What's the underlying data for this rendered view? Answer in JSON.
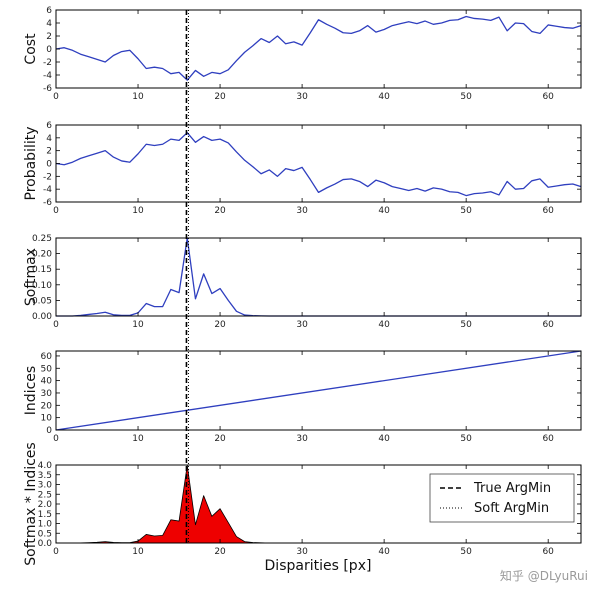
{
  "chart_data": {
    "type": "line",
    "xlabel": "Disparities [px]",
    "xlim": [
      0,
      64
    ],
    "xticks": [
      0,
      10,
      20,
      30,
      40,
      50,
      60
    ],
    "marker_x": 16,
    "panels": [
      {
        "name": "cost",
        "ylabel": "Cost",
        "ylim": [
          -6,
          6
        ],
        "yticks": [
          -6,
          -4,
          -2,
          0,
          2,
          4,
          6
        ],
        "series": [
          {
            "name": "Cost",
            "color": "#2f3fbf",
            "x": [
              0,
              1,
              2,
              3,
              4,
              5,
              6,
              7,
              8,
              9,
              10,
              11,
              12,
              13,
              14,
              15,
              16,
              17,
              18,
              19,
              20,
              21,
              22,
              23,
              24,
              25,
              26,
              27,
              28,
              29,
              30,
              31,
              32,
              33,
              34,
              35,
              36,
              37,
              38,
              39,
              40,
              41,
              42,
              43,
              44,
              45,
              46,
              47,
              48,
              49,
              50,
              51,
              52,
              53,
              54,
              55,
              56,
              57,
              58,
              59,
              60,
              61,
              62,
              63,
              64
            ],
            "y": [
              0,
              0.2,
              -0.2,
              -0.8,
              -1.2,
              -1.6,
              -2,
              -1,
              -0.4,
              -0.2,
              -1.5,
              -3,
              -2.8,
              -3,
              -3.8,
              -3.6,
              -4.8,
              -3.3,
              -4.2,
              -3.6,
              -3.8,
              -3.2,
              -1.8,
              -0.5,
              0.5,
              1.6,
              1,
              2,
              0.8,
              1.1,
              0.6,
              2.5,
              4.5,
              3.8,
              3.2,
              2.5,
              2.4,
              2.8,
              3.6,
              2.6,
              3,
              3.6,
              3.9,
              4.2,
              3.9,
              4.3,
              3.8,
              4,
              4.4,
              4.5,
              5,
              4.7,
              4.6,
              4.4,
              4.9,
              2.8,
              4,
              3.9,
              2.7,
              2.4,
              3.7,
              3.5,
              3.3,
              3.2,
              3.6
            ]
          }
        ]
      },
      {
        "name": "probability",
        "ylabel": "Probability",
        "ylim": [
          -6,
          6
        ],
        "yticks": [
          -6,
          -4,
          -2,
          0,
          2,
          4,
          6
        ],
        "series": [
          {
            "name": "Probability",
            "color": "#2f3fbf",
            "x": [
              0,
              1,
              2,
              3,
              4,
              5,
              6,
              7,
              8,
              9,
              10,
              11,
              12,
              13,
              14,
              15,
              16,
              17,
              18,
              19,
              20,
              21,
              22,
              23,
              24,
              25,
              26,
              27,
              28,
              29,
              30,
              31,
              32,
              33,
              34,
              35,
              36,
              37,
              38,
              39,
              40,
              41,
              42,
              43,
              44,
              45,
              46,
              47,
              48,
              49,
              50,
              51,
              52,
              53,
              54,
              55,
              56,
              57,
              58,
              59,
              60,
              61,
              62,
              63,
              64
            ],
            "y": [
              0,
              -0.2,
              0.2,
              0.8,
              1.2,
              1.6,
              2,
              1,
              0.4,
              0.2,
              1.5,
              3,
              2.8,
              3,
              3.8,
              3.6,
              4.8,
              3.3,
              4.2,
              3.6,
              3.8,
              3.2,
              1.8,
              0.5,
              -0.5,
              -1.6,
              -1,
              -2,
              -0.8,
              -1.1,
              -0.6,
              -2.5,
              -4.5,
              -3.8,
              -3.2,
              -2.5,
              -2.4,
              -2.8,
              -3.6,
              -2.6,
              -3,
              -3.6,
              -3.9,
              -4.2,
              -3.9,
              -4.3,
              -3.8,
              -4,
              -4.4,
              -4.5,
              -5,
              -4.7,
              -4.6,
              -4.4,
              -4.9,
              -2.8,
              -4,
              -3.9,
              -2.7,
              -2.4,
              -3.7,
              -3.5,
              -3.3,
              -3.2,
              -3.6
            ]
          }
        ]
      },
      {
        "name": "softmax",
        "ylabel": "Softmax",
        "ylim": [
          0,
          0.25
        ],
        "yticks": [
          0,
          0.05,
          0.1,
          0.15,
          0.2,
          0.25
        ],
        "ytick_labels": [
          "0.00",
          "0.05",
          "0.10",
          "0.15",
          "0.20",
          "0.25"
        ],
        "series": [
          {
            "name": "Softmax",
            "color": "#2f3fbf",
            "x": [
              0,
              1,
              2,
              3,
              4,
              5,
              6,
              7,
              8,
              9,
              10,
              11,
              12,
              13,
              14,
              15,
              16,
              17,
              18,
              19,
              20,
              21,
              22,
              23,
              24,
              25,
              26,
              28,
              30,
              40,
              50,
              60,
              64
            ],
            "y": [
              0,
              0,
              0,
              0.002,
              0.005,
              0.008,
              0.012,
              0.004,
              0.002,
              0.002,
              0.01,
              0.04,
              0.03,
              0.03,
              0.085,
              0.075,
              0.25,
              0.055,
              0.135,
              0.072,
              0.088,
              0.05,
              0.015,
              0.003,
              0.001,
              0.0005,
              0,
              0,
              0,
              0,
              0,
              0,
              0
            ]
          }
        ]
      },
      {
        "name": "indices",
        "ylabel": "Indices",
        "ylim": [
          0,
          64
        ],
        "yticks": [
          0,
          10,
          20,
          30,
          40,
          50,
          60
        ],
        "series": [
          {
            "name": "Indices",
            "color": "#2f3fbf",
            "x": [
              0,
              64
            ],
            "y": [
              0,
              64
            ]
          }
        ]
      },
      {
        "name": "softmax_indices",
        "ylabel": "Softmax * Indices",
        "ylim": [
          0,
          4
        ],
        "yticks": [
          0,
          0.5,
          1,
          1.5,
          2,
          2.5,
          3,
          3.5,
          4
        ],
        "ytick_labels": [
          "0.0",
          "0.5",
          "1.0",
          "1.5",
          "2.0",
          "2.5",
          "3.0",
          "3.5",
          "4.0"
        ],
        "series": [
          {
            "name": "Softmax * Indices",
            "color": "#ee0000",
            "fill": true,
            "x": [
              0,
              1,
              2,
              3,
              4,
              5,
              6,
              7,
              8,
              9,
              10,
              11,
              12,
              13,
              14,
              15,
              16,
              17,
              18,
              19,
              20,
              21,
              22,
              23,
              24,
              25,
              26,
              28,
              30,
              40,
              50,
              60,
              64
            ],
            "y": [
              0,
              0,
              0,
              0.006,
              0.02,
              0.04,
              0.072,
              0.028,
              0.016,
              0.018,
              0.1,
              0.44,
              0.36,
              0.39,
              1.19,
              1.125,
              4,
              0.935,
              2.43,
              1.368,
              1.76,
              1.05,
              0.33,
              0.069,
              0.024,
              0.0125,
              0,
              0,
              0,
              0,
              0,
              0,
              0
            ]
          }
        ]
      }
    ],
    "legend": {
      "location": "right",
      "entries": [
        {
          "label": "True ArgMin",
          "style": "dashed"
        },
        {
          "label": "Soft ArgMin",
          "style": "dotted"
        }
      ]
    }
  },
  "watermark": "知乎 @DLyuRui"
}
